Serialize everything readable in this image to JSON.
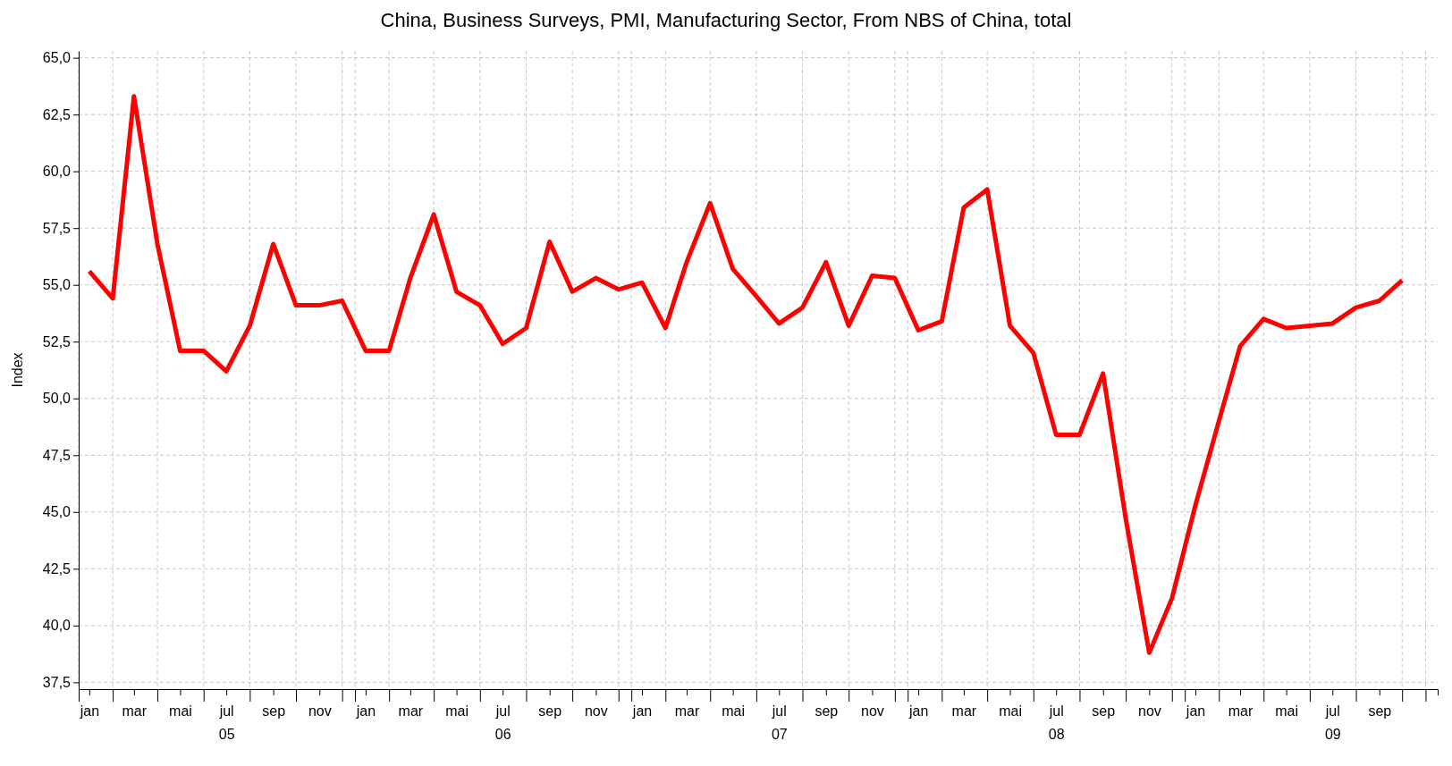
{
  "chart_data": {
    "type": "line",
    "title": "China, Business Surveys, PMI, Manufacturing Sector, From NBS of China, total",
    "ylabel": "Index",
    "x": [
      "2005-01-15",
      "2005-02-15",
      "2005-03-15",
      "2005-04-15",
      "2005-05-15",
      "2005-06-15",
      "2005-07-15",
      "2005-08-15",
      "2005-09-15",
      "2005-10-15",
      "2005-11-15",
      "2005-12-15",
      "2006-01-15",
      "2006-02-15",
      "2006-03-15",
      "2006-04-15",
      "2006-05-15",
      "2006-06-15",
      "2006-07-15",
      "2006-08-15",
      "2006-09-15",
      "2006-10-15",
      "2006-11-15",
      "2006-12-15",
      "2007-01-15",
      "2007-02-15",
      "2007-03-15",
      "2007-04-15",
      "2007-05-15",
      "2007-06-15",
      "2007-07-15",
      "2007-08-15",
      "2007-09-15",
      "2007-10-15",
      "2007-11-15",
      "2007-12-15",
      "2008-01-15",
      "2008-02-15",
      "2008-03-15",
      "2008-04-15",
      "2008-05-15",
      "2008-06-15",
      "2008-07-15",
      "2008-08-15",
      "2008-09-15",
      "2008-10-15",
      "2008-11-15",
      "2008-12-15",
      "2009-01-15",
      "2009-02-15",
      "2009-03-15",
      "2009-04-15",
      "2009-05-15",
      "2009-06-15",
      "2009-07-15",
      "2009-08-15",
      "2009-09-15",
      "2009-10-15"
    ],
    "series": [
      {
        "color": "#ff0000",
        "values": [
          55.6,
          54.4,
          63.3,
          56.8,
          52.1,
          52.1,
          51.2,
          53.2,
          56.8,
          54.1,
          54.1,
          54.3,
          52.1,
          52.1,
          55.3,
          58.1,
          54.7,
          54.1,
          52.4,
          53.1,
          56.9,
          54.7,
          55.3,
          54.8,
          55.1,
          53.1,
          56.0,
          58.6,
          55.7,
          54.5,
          53.3,
          54.0,
          56.0,
          53.2,
          55.4,
          55.3,
          53.0,
          53.4,
          58.4,
          59.2,
          53.2,
          52.0,
          48.4,
          48.4,
          51.1,
          44.7,
          38.8,
          41.2,
          45.3,
          49.0,
          52.3,
          53.5,
          53.1,
          53.2,
          53.3,
          54.0,
          54.3,
          55.2
        ]
      }
    ],
    "xlim": [
      "2005-01-01",
      "2009-12-01"
    ],
    "xticks": [
      {
        "value": "2005-01-01",
        "label": null
      },
      {
        "value": "2005-01-15",
        "label": "jan"
      },
      {
        "value": "2005-02-15",
        "label": null
      },
      {
        "value": "2005-03-15",
        "label": "mar"
      },
      {
        "value": "2005-04-15",
        "label": null
      },
      {
        "value": "2005-05-15",
        "label": "mai"
      },
      {
        "value": "2005-06-15",
        "label": null
      },
      {
        "value": "2005-07-15",
        "label": "jul\n05"
      },
      {
        "value": "2005-08-15",
        "label": null
      },
      {
        "value": "2005-09-15",
        "label": "sep"
      },
      {
        "value": "2005-10-15",
        "label": null
      },
      {
        "value": "2005-11-15",
        "label": "nov"
      },
      {
        "value": "2005-12-15",
        "label": null
      },
      {
        "value": "2006-01-01",
        "label": null
      },
      {
        "value": "2006-01-15",
        "label": "jan"
      },
      {
        "value": "2006-02-15",
        "label": null
      },
      {
        "value": "2006-03-15",
        "label": "mar"
      },
      {
        "value": "2006-04-15",
        "label": null
      },
      {
        "value": "2006-05-15",
        "label": "mai"
      },
      {
        "value": "2006-06-15",
        "label": null
      },
      {
        "value": "2006-07-15",
        "label": "jul\n06"
      },
      {
        "value": "2006-08-15",
        "label": null
      },
      {
        "value": "2006-09-15",
        "label": "sep"
      },
      {
        "value": "2006-10-15",
        "label": null
      },
      {
        "value": "2006-11-15",
        "label": "nov"
      },
      {
        "value": "2006-12-15",
        "label": null
      },
      {
        "value": "2007-01-01",
        "label": null
      },
      {
        "value": "2007-01-15",
        "label": "jan"
      },
      {
        "value": "2007-02-15",
        "label": null
      },
      {
        "value": "2007-03-15",
        "label": "mar"
      },
      {
        "value": "2007-04-15",
        "label": null
      },
      {
        "value": "2007-05-15",
        "label": "mai"
      },
      {
        "value": "2007-06-15",
        "label": null
      },
      {
        "value": "2007-07-15",
        "label": "jul\n07"
      },
      {
        "value": "2007-08-15",
        "label": null
      },
      {
        "value": "2007-09-15",
        "label": "sep"
      },
      {
        "value": "2007-10-15",
        "label": null
      },
      {
        "value": "2007-11-15",
        "label": "nov"
      },
      {
        "value": "2007-12-15",
        "label": null
      },
      {
        "value": "2008-01-01",
        "label": null
      },
      {
        "value": "2008-01-15",
        "label": "jan"
      },
      {
        "value": "2008-02-15",
        "label": null
      },
      {
        "value": "2008-03-15",
        "label": "mar"
      },
      {
        "value": "2008-04-15",
        "label": null
      },
      {
        "value": "2008-05-15",
        "label": "mai"
      },
      {
        "value": "2008-06-15",
        "label": null
      },
      {
        "value": "2008-07-15",
        "label": "jul\n08"
      },
      {
        "value": "2008-08-15",
        "label": null
      },
      {
        "value": "2008-09-15",
        "label": "sep"
      },
      {
        "value": "2008-10-15",
        "label": null
      },
      {
        "value": "2008-11-15",
        "label": "nov"
      },
      {
        "value": "2008-12-15",
        "label": null
      },
      {
        "value": "2009-01-01",
        "label": null
      },
      {
        "value": "2009-01-15",
        "label": "jan"
      },
      {
        "value": "2009-02-15",
        "label": null
      },
      {
        "value": "2009-03-15",
        "label": "mar"
      },
      {
        "value": "2009-04-15",
        "label": null
      },
      {
        "value": "2009-05-15",
        "label": "mai"
      },
      {
        "value": "2009-06-15",
        "label": null
      },
      {
        "value": "2009-07-15",
        "label": "jul\n09"
      },
      {
        "value": "2009-08-15",
        "label": null
      },
      {
        "value": "2009-09-15",
        "label": "sep"
      },
      {
        "value": "2009-10-15",
        "label": null
      },
      {
        "value": "2009-11-15",
        "label": null
      }
    ],
    "ylim": [
      37.2,
      65.3
    ],
    "yticks": [
      {
        "value": 37.5,
        "label": "37,5"
      },
      {
        "value": 40,
        "label": "40,0"
      },
      {
        "value": 42.5,
        "label": "42,5"
      },
      {
        "value": 45,
        "label": "45,0"
      },
      {
        "value": 47.5,
        "label": "47,5"
      },
      {
        "value": 50,
        "label": "50,0"
      },
      {
        "value": 52.5,
        "label": "52,5"
      },
      {
        "value": 55,
        "label": "55,0"
      },
      {
        "value": 57.5,
        "label": "57,5"
      },
      {
        "value": 60,
        "label": "60,0"
      },
      {
        "value": 62.5,
        "label": "62,5"
      },
      {
        "value": 65,
        "label": "65,0"
      }
    ],
    "grid": true,
    "marker": "none",
    "line_style": "solid"
  }
}
